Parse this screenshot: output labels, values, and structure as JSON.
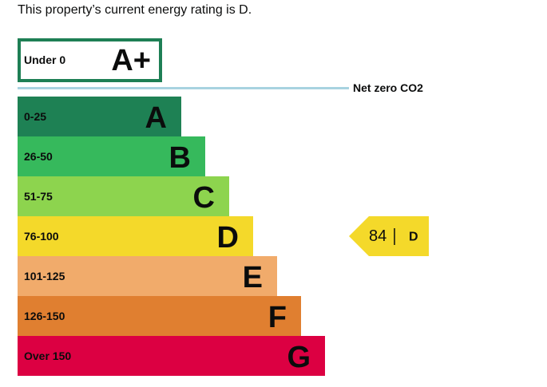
{
  "intro": "This property’s current energy rating is D.",
  "top_band": {
    "range": "Under 0",
    "letter": "A+",
    "color": "#1e7f55"
  },
  "net_zero": "Net zero CO2",
  "bands": [
    {
      "range": "0-25",
      "letter": "A",
      "color": "#1e8154"
    },
    {
      "range": "26-50",
      "letter": "B",
      "color": "#36b95c"
    },
    {
      "range": "51-75",
      "letter": "C",
      "color": "#8dd44e"
    },
    {
      "range": "76-100",
      "letter": "D",
      "color": "#f4d92a"
    },
    {
      "range": "101-125",
      "letter": "E",
      "color": "#f1ab6b"
    },
    {
      "range": "126-150",
      "letter": "F",
      "color": "#e07f30"
    },
    {
      "range": "Over 150",
      "letter": "G",
      "color": "#dc0042"
    }
  ],
  "current_rating": {
    "score": 84,
    "letter": "D",
    "band_index": 3
  }
}
